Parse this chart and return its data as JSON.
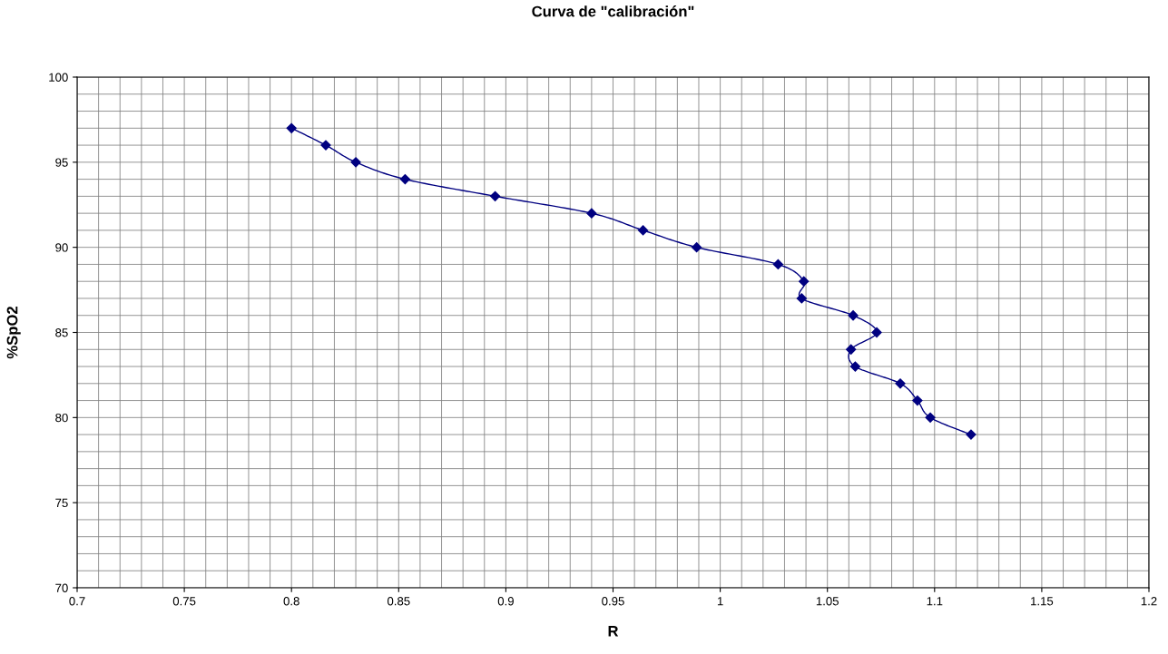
{
  "chart_data": {
    "type": "line",
    "title": "Curva de \"calibración\"",
    "xlabel": "R",
    "ylabel": "%SpO2",
    "x": [
      0.8,
      0.816,
      0.83,
      0.853,
      0.895,
      0.94,
      0.964,
      0.989,
      1.027,
      1.039,
      1.038,
      1.062,
      1.073,
      1.061,
      1.063,
      1.084,
      1.092,
      1.098,
      1.117
    ],
    "series": [
      {
        "color": "#000080",
        "values": [
          97,
          96,
          95,
          94,
          93,
          92,
          91,
          90,
          89,
          88,
          87,
          86,
          85,
          84,
          83,
          82,
          81,
          80,
          79
        ]
      }
    ],
    "xlim": [
      0.7,
      1.2
    ],
    "xticks": [
      0.7,
      0.75,
      0.8,
      0.85,
      0.9,
      0.95,
      1,
      1.05,
      1.1,
      1.15,
      1.2
    ],
    "ylim": [
      70,
      100
    ],
    "yticks": [
      70,
      75,
      80,
      85,
      90,
      95,
      100
    ],
    "grid": true,
    "marker": "diamond",
    "line_style": "solid"
  }
}
